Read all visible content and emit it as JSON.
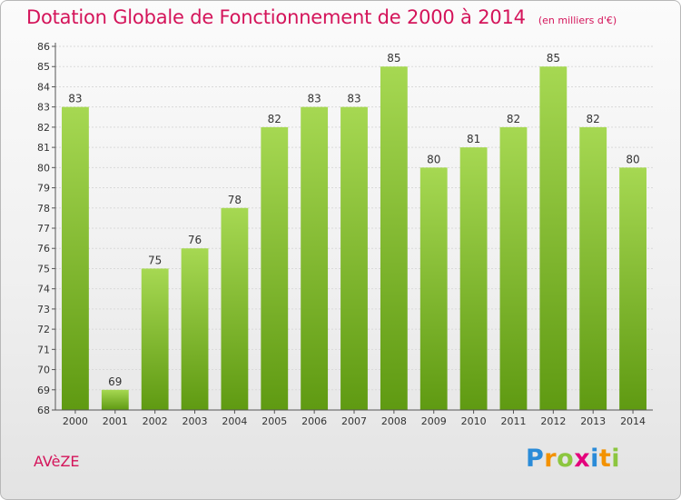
{
  "title": "Dotation Globale de Fonctionnement de 2000 à 2014",
  "subtitle": "(en milliers d'€)",
  "commune": "AVèZE",
  "logo": {
    "letters": [
      "P",
      "r",
      "o",
      "x",
      "i",
      "t",
      "i"
    ],
    "colors": [
      "#2a8bd8",
      "#f39200",
      "#8cc63f",
      "#e4007c",
      "#2a8bd8",
      "#f39200",
      "#8cc63f"
    ]
  },
  "colors": {
    "title": "#d4145a",
    "bar_top": "#a6d852",
    "bar_bottom": "#5f9a12",
    "grid": "#d9d9d9",
    "axis": "#555555"
  },
  "chart_data": {
    "type": "bar",
    "categories": [
      "2000",
      "2001",
      "2002",
      "2003",
      "2004",
      "2005",
      "2006",
      "2007",
      "2008",
      "2009",
      "2010",
      "2011",
      "2012",
      "2013",
      "2014"
    ],
    "values": [
      83,
      69,
      75,
      76,
      78,
      82,
      83,
      83,
      85,
      80,
      81,
      82,
      85,
      82,
      80
    ],
    "ylim": [
      68,
      86
    ],
    "yticks": [
      68,
      69,
      70,
      71,
      72,
      73,
      74,
      75,
      76,
      77,
      78,
      79,
      80,
      81,
      82,
      83,
      84,
      85,
      86
    ],
    "grid": true,
    "xlabel": "",
    "ylabel": ""
  }
}
